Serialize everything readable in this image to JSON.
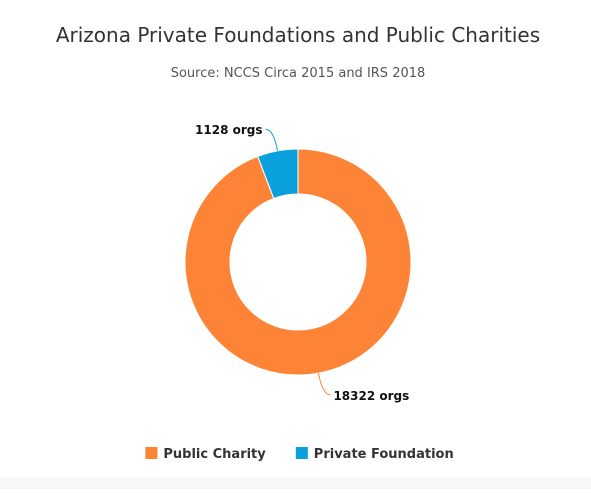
{
  "chart_data": {
    "type": "pie",
    "variant": "donut",
    "title": "Arizona Private Foundations and Public Charities",
    "subtitle": "Source: NCCS Circa 2015 and IRS 2018",
    "series": [
      {
        "name": "Public Charity",
        "value": 18322,
        "label": "18322 orgs",
        "color": "#fd8436"
      },
      {
        "name": "Private Foundation",
        "value": 1128,
        "label": "1128 orgs",
        "color": "#0aa0dc"
      }
    ],
    "legend_position": "bottom-center"
  },
  "colors": {
    "title": "#333333",
    "subtitle": "#555555",
    "label": "#111111"
  }
}
